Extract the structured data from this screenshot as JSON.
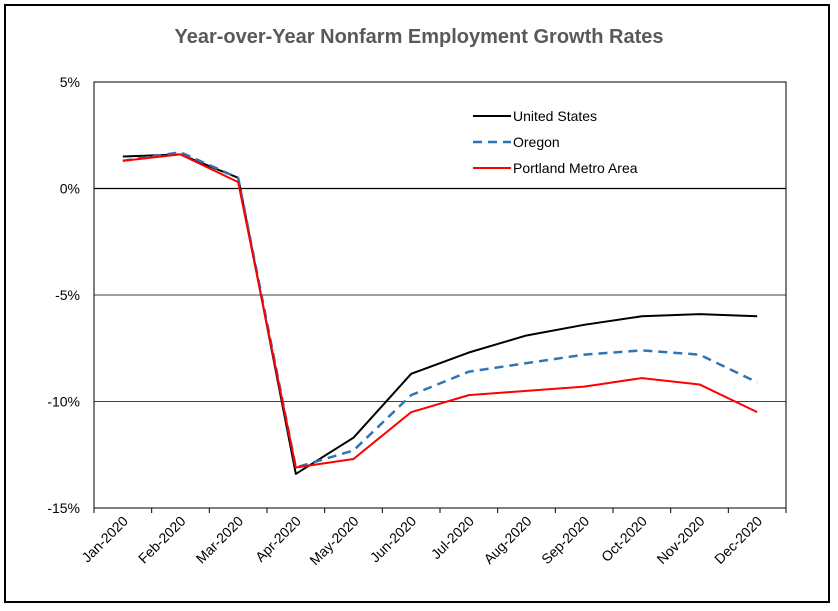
{
  "chart_data": {
    "type": "line",
    "title": "Year-over-Year Nonfarm Employment Growth Rates",
    "xlabel": "",
    "ylabel": "",
    "categories": [
      "Jan-2020",
      "Feb-2020",
      "Mar-2020",
      "Apr-2020",
      "May-2020",
      "Jun-2020",
      "Jul-2020",
      "Aug-2020",
      "Sep-2020",
      "Oct-2020",
      "Nov-2020",
      "Dec-2020"
    ],
    "ylim": [
      -15,
      5
    ],
    "yticks": [
      5,
      0,
      -5,
      -10,
      -15
    ],
    "ytick_labels": [
      "5%",
      "0%",
      "-5%",
      "-10%",
      "-15%"
    ],
    "grid": true,
    "legend_position": "top-right",
    "series": [
      {
        "name": "United States",
        "color": "#000000",
        "dash": "solid",
        "values": [
          1.5,
          1.6,
          0.5,
          -13.4,
          -11.7,
          -8.7,
          -7.7,
          -6.9,
          -6.4,
          -6.0,
          -5.9,
          -6.0
        ]
      },
      {
        "name": "Oregon",
        "color": "#2E75B6",
        "dash": "dashed",
        "values": [
          1.3,
          1.7,
          0.5,
          -13.1,
          -12.3,
          -9.7,
          -8.6,
          -8.2,
          -7.8,
          -7.6,
          -7.8,
          -9.1
        ]
      },
      {
        "name": "Portland Metro Area",
        "color": "#FF0000",
        "dash": "solid",
        "values": [
          1.3,
          1.6,
          0.3,
          -13.1,
          -12.7,
          -10.5,
          -9.7,
          -9.5,
          -9.3,
          -8.9,
          -9.2,
          -10.5
        ]
      }
    ]
  }
}
